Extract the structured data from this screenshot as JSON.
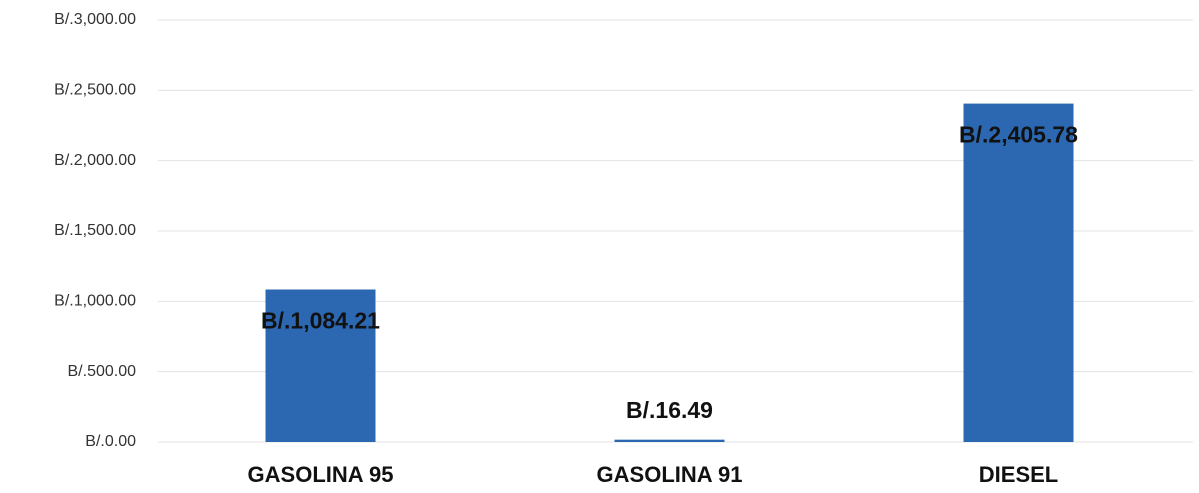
{
  "chart_data": {
    "type": "bar",
    "categories": [
      "GASOLINA 95",
      "GASOLINA 91",
      "DIESEL"
    ],
    "values": [
      1084.21,
      16.49,
      2405.78
    ],
    "value_labels": [
      "B/.1,084.21",
      "B/.16.49",
      "B/.2,405.78"
    ],
    "color": "#2b68b1",
    "ylim": [
      0,
      3000
    ],
    "yticks": [
      {
        "value": 0,
        "label": "B/.0.00"
      },
      {
        "value": 500,
        "label": "B/.500.00"
      },
      {
        "value": 1000,
        "label": "B/.1,000.00"
      },
      {
        "value": 1500,
        "label": "B/.1,500.00"
      },
      {
        "value": 2000,
        "label": "B/.2,000.00"
      },
      {
        "value": 2500,
        "label": "B/.2,500.00"
      },
      {
        "value": 3000,
        "label": "B/.3,000.00"
      }
    ],
    "grid": true
  }
}
